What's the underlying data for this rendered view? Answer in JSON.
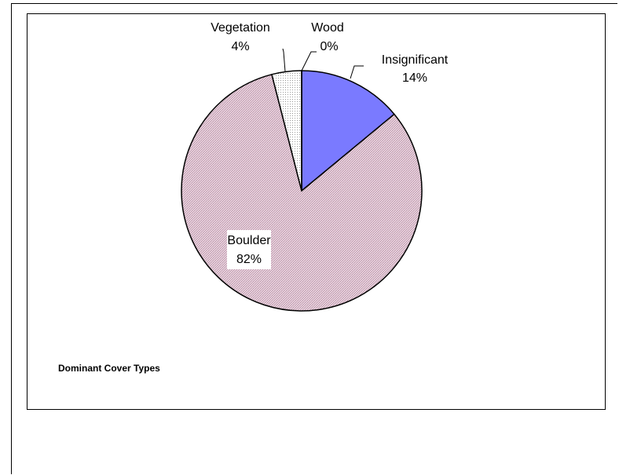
{
  "chart_data": {
    "type": "pie",
    "caption": "Dominant Cover Types",
    "slices": [
      {
        "label": "Insignificant",
        "value": 14,
        "value_text": "14%",
        "color": "#7a7aff"
      },
      {
        "label": "Boulder",
        "value": 82,
        "value_text": "82%",
        "color": "#e9c9d9"
      },
      {
        "label": "Vegetation",
        "value": 4,
        "value_text": "4%",
        "color": "#f0f0f0"
      },
      {
        "label": "Wood",
        "value": 0,
        "value_text": "0%",
        "color": "#ffffff"
      }
    ]
  }
}
